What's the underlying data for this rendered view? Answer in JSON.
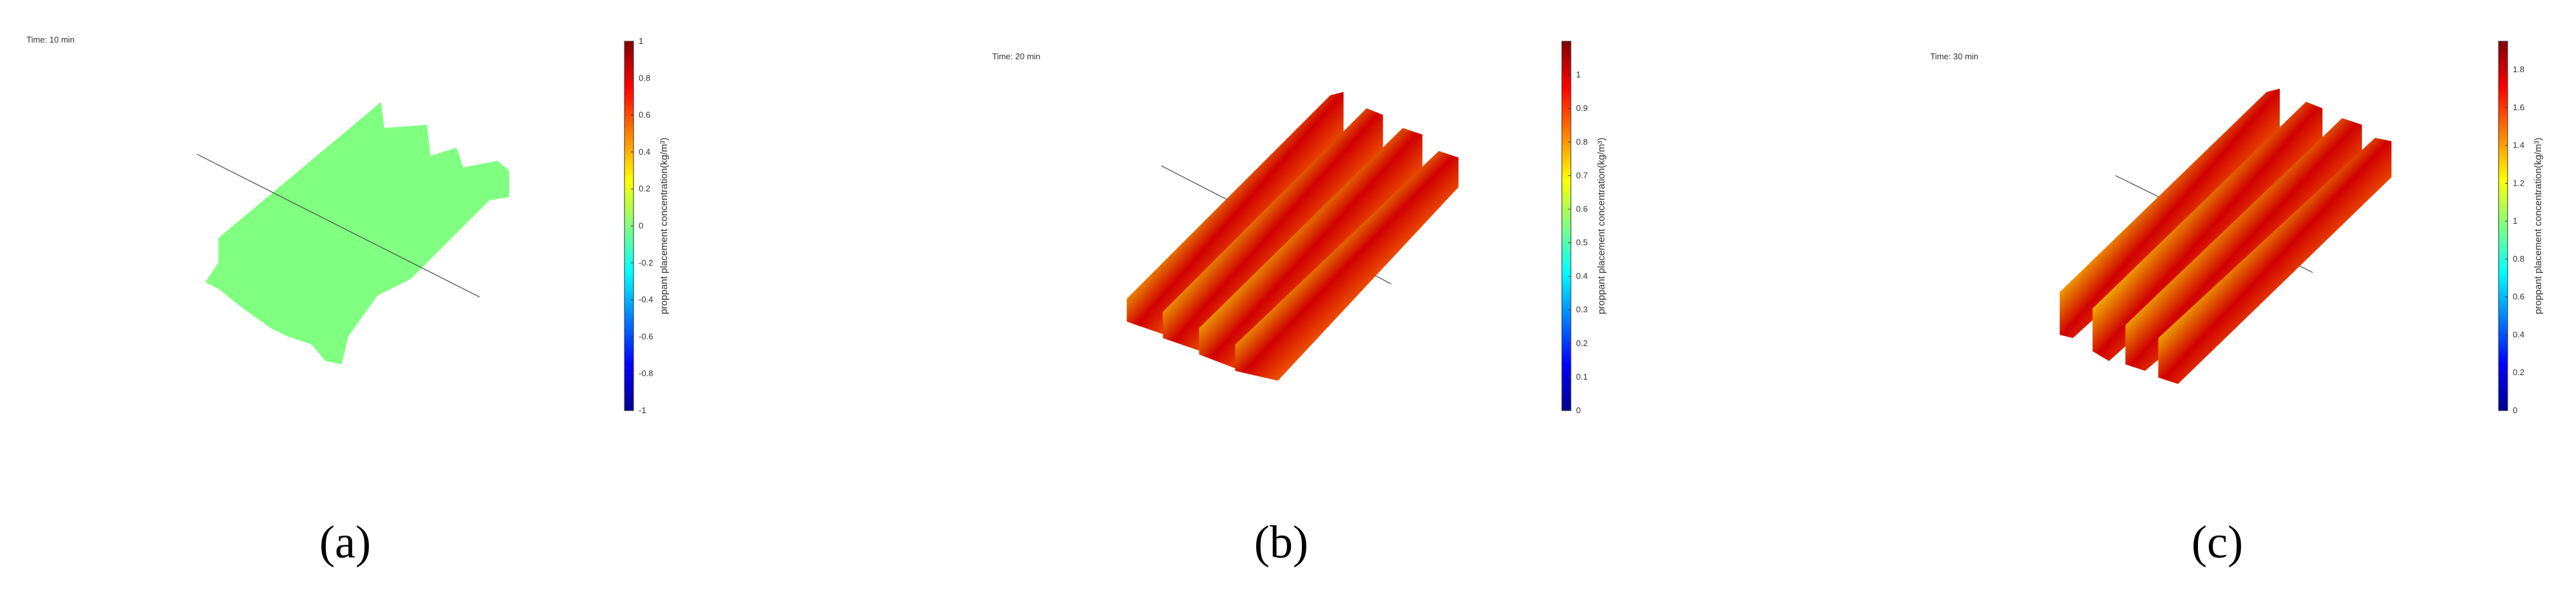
{
  "panels": [
    {
      "time_label": "Time: 10  min",
      "colorbar": {
        "label": "proppant placement concentration(kg/m³)",
        "lim": [
          -1,
          1
        ],
        "ticks": [
          -1,
          -0.8,
          -0.6,
          -0.4,
          -0.2,
          0,
          0.2,
          0.4,
          0.6,
          0.8,
          1
        ]
      },
      "caption": "(a)"
    },
    {
      "time_label": "Time: 20  min",
      "colorbar": {
        "label": "proppant placement concentration(kg/m³)",
        "lim": [
          0,
          1.1
        ],
        "ticks": [
          0,
          0.1,
          0.2,
          0.3,
          0.4,
          0.5,
          0.6,
          0.7,
          0.8,
          0.9,
          1
        ]
      },
      "caption": "(b)"
    },
    {
      "time_label": "Time: 30  min",
      "colorbar": {
        "label": "proppant placement concentration(kg/m³)",
        "lim": [
          0,
          1.95
        ],
        "ticks": [
          0,
          0.2,
          0.4,
          0.6,
          0.8,
          1,
          1.2,
          1.4,
          1.6,
          1.8
        ]
      },
      "caption": "(c)"
    }
  ]
}
